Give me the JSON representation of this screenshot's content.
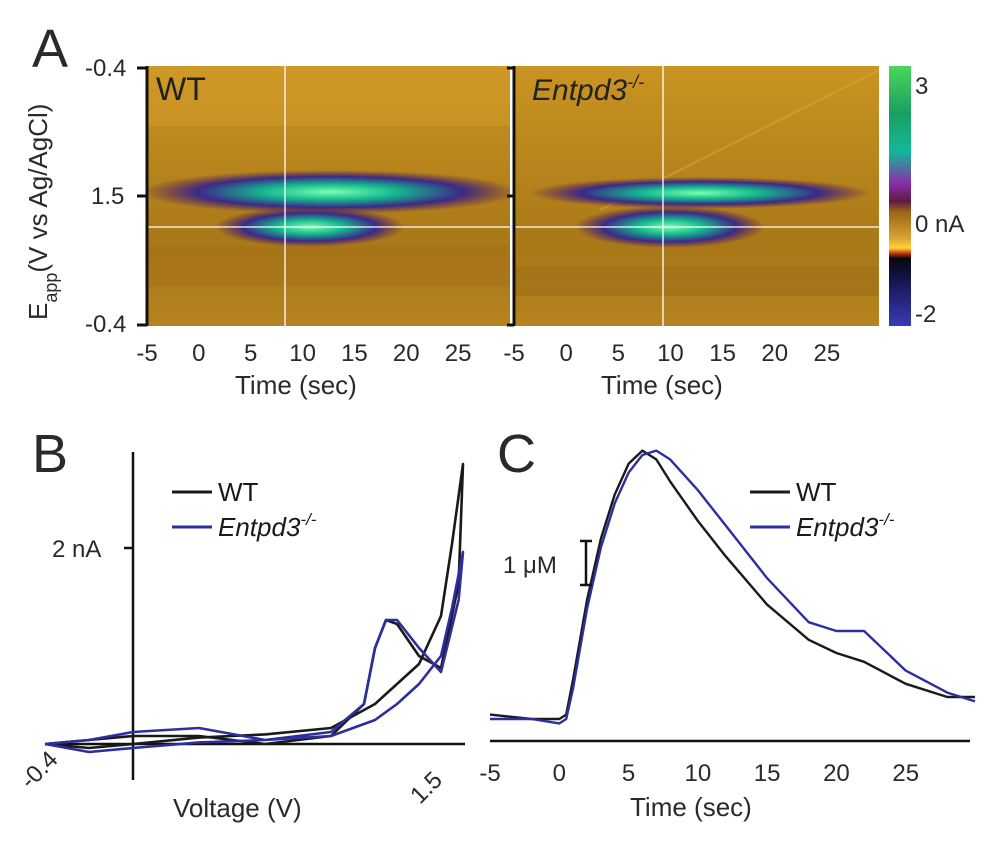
{
  "panel_labels": {
    "a": "A",
    "b": "B",
    "c": "C"
  },
  "colors": {
    "wt": "#1a1a1a",
    "ko": "#2e2e9e",
    "bg_field": "#b8871c"
  },
  "colorbar": {
    "max_label": "3",
    "zero_label": "0 nA",
    "min_label": "-2"
  },
  "chart_data": [
    {
      "type": "heatmap",
      "panel": "A",
      "title": "WT",
      "xlabel": "Time (sec)",
      "ylabel_main": "E",
      "ylabel_sub": "app",
      "ylabel_rest": "(V vs Ag/AgCl)",
      "x_ticks": [
        "-5",
        "0",
        "5",
        "10",
        "15",
        "20",
        "25"
      ],
      "y_ticks": [
        "-0.4",
        "1.5",
        "-0.4"
      ],
      "xlim": [
        -5,
        30
      ],
      "units": "nA",
      "zlim": [
        -2,
        3
      ],
      "cursor_time": 8.8,
      "features": [
        {
          "name": "oxidation band",
          "start_time": 2,
          "peak_time": 7,
          "end_time": 30,
          "peak_current": 3
        },
        {
          "name": "secondary band",
          "start_time": 2.5,
          "peak_time": 8,
          "end_time": 20,
          "peak_current": 2.5
        }
      ]
    },
    {
      "type": "heatmap",
      "panel": "A",
      "title": "Entpd3",
      "title_sup": "-/-",
      "xlabel": "Time (sec)",
      "x_ticks": [
        "-5",
        "0",
        "5",
        "10",
        "15",
        "20",
        "25"
      ],
      "xlim": [
        -5,
        30
      ],
      "units": "nA",
      "zlim": [
        -2,
        3
      ],
      "cursor_time": 9.3,
      "features": [
        {
          "name": "oxidation band",
          "start_time": 1.5,
          "peak_time": 5,
          "end_time": 30,
          "peak_current": 2.8
        },
        {
          "name": "secondary band",
          "start_time": 2,
          "peak_time": 9,
          "end_time": 21,
          "peak_current": 2.5
        }
      ]
    },
    {
      "type": "line",
      "panel": "B",
      "xlabel": "Voltage (V)",
      "x_tick_left": "-0.4",
      "x_tick_right": "1.5",
      "y_tick": "2 nA",
      "legend": [
        {
          "name": "WT",
          "sup": ""
        },
        {
          "name": "Entpd3",
          "sup": "-/-"
        }
      ],
      "series": [
        {
          "name": "WT",
          "anodic": [
            [
              -0.4,
              0.0
            ],
            [
              -0.2,
              -0.05
            ],
            [
              0.0,
              0.0
            ],
            [
              0.3,
              0.08
            ],
            [
              0.6,
              0.12
            ],
            [
              0.9,
              0.2
            ],
            [
              1.1,
              0.5
            ],
            [
              1.2,
              0.75
            ],
            [
              1.3,
              1.0
            ],
            [
              1.4,
              1.6
            ],
            [
              1.45,
              2.5
            ],
            [
              1.5,
              3.5
            ]
          ],
          "cathodic": [
            [
              1.5,
              3.5
            ],
            [
              1.48,
              2.0
            ],
            [
              1.4,
              0.95
            ],
            [
              1.3,
              1.1
            ],
            [
              1.2,
              1.5
            ],
            [
              1.15,
              1.55
            ],
            [
              1.1,
              1.2
            ],
            [
              1.05,
              0.5
            ],
            [
              0.9,
              0.1
            ],
            [
              0.6,
              0.0
            ],
            [
              0.3,
              0.1
            ],
            [
              0.0,
              0.1
            ],
            [
              -0.2,
              0.05
            ],
            [
              -0.4,
              0.0
            ]
          ]
        },
        {
          "name": "Entpd3-/-",
          "anodic": [
            [
              -0.4,
              0.0
            ],
            [
              -0.2,
              -0.1
            ],
            [
              0.0,
              -0.05
            ],
            [
              0.3,
              0.02
            ],
            [
              0.6,
              0.05
            ],
            [
              0.9,
              0.1
            ],
            [
              1.1,
              0.3
            ],
            [
              1.2,
              0.5
            ],
            [
              1.3,
              0.75
            ],
            [
              1.4,
              1.1
            ],
            [
              1.45,
              1.7
            ],
            [
              1.5,
              2.4
            ]
          ],
          "cathodic": [
            [
              1.5,
              2.4
            ],
            [
              1.48,
              1.8
            ],
            [
              1.4,
              0.9
            ],
            [
              1.3,
              1.2
            ],
            [
              1.2,
              1.55
            ],
            [
              1.15,
              1.55
            ],
            [
              1.1,
              1.2
            ],
            [
              1.05,
              0.5
            ],
            [
              0.9,
              0.15
            ],
            [
              0.6,
              0.05
            ],
            [
              0.3,
              0.2
            ],
            [
              0.0,
              0.15
            ],
            [
              -0.2,
              0.05
            ],
            [
              -0.4,
              0.0
            ]
          ]
        }
      ]
    },
    {
      "type": "line",
      "panel": "C",
      "xlabel": "Time (sec)",
      "x_ticks": [
        "-5",
        "0",
        "5",
        "10",
        "15",
        "20",
        "25"
      ],
      "xlim": [
        -5,
        30
      ],
      "scale_bar": "1 μM",
      "scale_bar_value": 1,
      "ylim": [
        0,
        7
      ],
      "legend": [
        {
          "name": "WT",
          "sup": ""
        },
        {
          "name": "Entpd3",
          "sup": "-/-"
        }
      ],
      "series": [
        {
          "name": "WT",
          "x": [
            -5,
            -2,
            0,
            0.5,
            1,
            2,
            3,
            4,
            5,
            6,
            7,
            8,
            10,
            12,
            15,
            18,
            20,
            22,
            25,
            28,
            30
          ],
          "values": [
            0.6,
            0.5,
            0.5,
            0.6,
            1.4,
            3.2,
            4.6,
            5.6,
            6.3,
            6.6,
            6.4,
            5.9,
            5.0,
            4.2,
            3.1,
            2.3,
            2.0,
            1.8,
            1.3,
            1.0,
            1.0
          ]
        },
        {
          "name": "Entpd3-/-",
          "x": [
            -5,
            -2,
            0,
            0.5,
            1,
            2,
            3,
            4,
            5,
            6,
            7,
            8,
            10,
            12,
            15,
            18,
            20,
            22,
            25,
            28,
            30
          ],
          "values": [
            0.5,
            0.5,
            0.4,
            0.5,
            1.2,
            3.0,
            4.4,
            5.4,
            6.1,
            6.5,
            6.6,
            6.4,
            5.7,
            4.9,
            3.7,
            2.7,
            2.5,
            2.5,
            1.6,
            1.1,
            0.9
          ]
        }
      ]
    }
  ]
}
